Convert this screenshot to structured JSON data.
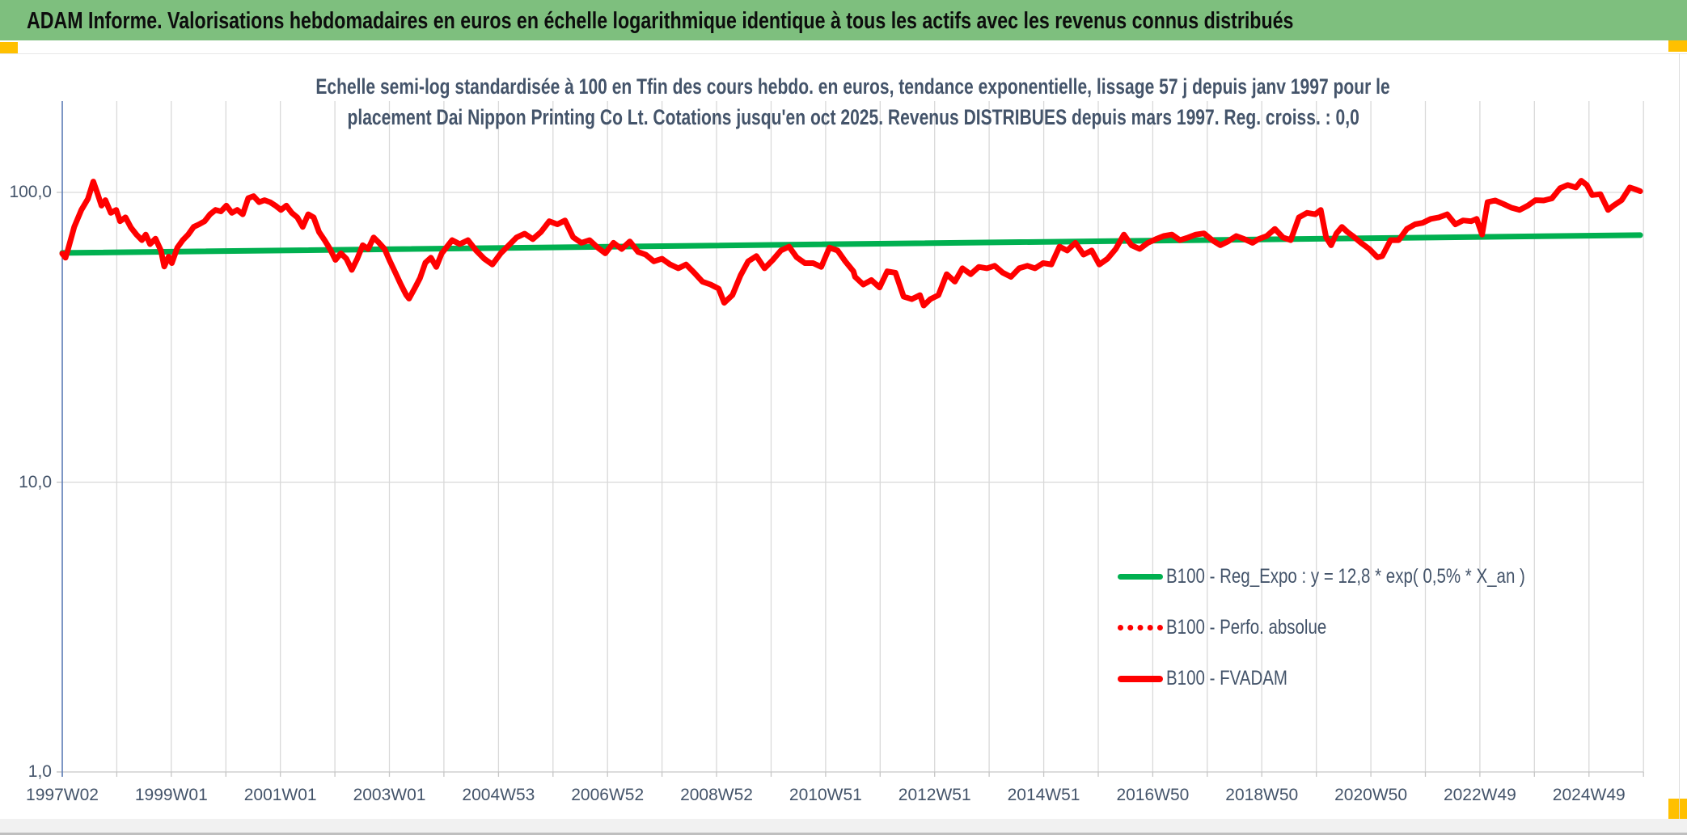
{
  "header": {
    "title": "ADAM Informe. Valorisations hebdomadaires en euros en échelle logarithmique identique à tous les actifs avec les revenus connus distribués",
    "bg_color": "#7EBF7E",
    "accent_color": "#FFC000"
  },
  "chart_data": {
    "type": "line",
    "title_lines": [
      "Echelle semi-log standardisée à 100 en Tfin des cours hebdo. en euros, tendance exponentielle, lissage 57 j depuis janv 1997 pour le",
      "placement Dai Nippon Printing Co Lt. Cotations jusqu'en oct 2025. Revenus DISTRIBUES depuis mars 1997. Reg. croiss. : 0,0"
    ],
    "text_color": "#44546A",
    "gridline_color": "#D9D9D9",
    "axis_line_color": "#5B7BB5",
    "x_axis": {
      "tick_labels": [
        "1997W02",
        "1999W01",
        "2001W01",
        "2003W01",
        "2004W53",
        "2006W52",
        "2008W52",
        "2010W51",
        "2012W51",
        "2014W51",
        "2016W50",
        "2018W50",
        "2020W50",
        "2022W49",
        "2024W49"
      ],
      "years_per_tick": 2,
      "unit": "ISO week",
      "grid": "yearly",
      "range_years": [
        0,
        29
      ]
    },
    "y_axis": {
      "scale": "log10",
      "tick_labels": [
        "100,0",
        "10,0",
        "1,0"
      ],
      "tick_values": [
        100,
        10,
        1
      ],
      "range": [
        1,
        207
      ],
      "gridlines_at": [
        100,
        10
      ]
    },
    "legend_position": "inside-bottom-right",
    "series": [
      {
        "name": "B100 - Reg_Expo : y = 12,8 * exp( 0,5% * X_an )",
        "color": "#00B050",
        "style": "solid",
        "x_unit": "years_since_1997W02",
        "points": [
          [
            0,
            61.8
          ],
          [
            28.94,
            71.2
          ]
        ]
      },
      {
        "name": "B100 - Perfo. absolue",
        "color": "#FF0000",
        "style": "dotted",
        "points_note": "coincides with B100 - FVADAM line (not separately visible on plot)"
      },
      {
        "name": "B100 - FVADAM",
        "color": "#FF0000",
        "style": "solid",
        "x_unit": "years_since_1997W02",
        "points": [
          [
            0,
            61.5
          ],
          [
            0.06,
            59.5
          ],
          [
            0.1,
            63
          ],
          [
            0.22,
            76
          ],
          [
            0.35,
            87
          ],
          [
            0.47,
            95
          ],
          [
            0.57,
            109
          ],
          [
            0.64,
            100
          ],
          [
            0.72,
            90
          ],
          [
            0.79,
            94
          ],
          [
            0.89,
            85
          ],
          [
            0.99,
            87
          ],
          [
            1.06,
            79.5
          ],
          [
            1.16,
            82
          ],
          [
            1.26,
            75.6
          ],
          [
            1.36,
            71.5
          ],
          [
            1.46,
            68.4
          ],
          [
            1.53,
            71.5
          ],
          [
            1.61,
            66.3
          ],
          [
            1.71,
            69.2
          ],
          [
            1.81,
            63
          ],
          [
            1.87,
            55.5
          ],
          [
            1.95,
            60
          ],
          [
            2.01,
            57
          ],
          [
            2.11,
            64.5
          ],
          [
            2.21,
            68.4
          ],
          [
            2.31,
            71.5
          ],
          [
            2.41,
            76
          ],
          [
            2.51,
            77.6
          ],
          [
            2.61,
            79.5
          ],
          [
            2.71,
            84
          ],
          [
            2.81,
            87
          ],
          [
            2.91,
            86
          ],
          [
            3.01,
            90
          ],
          [
            3.11,
            85
          ],
          [
            3.21,
            87
          ],
          [
            3.31,
            84
          ],
          [
            3.41,
            95.5
          ],
          [
            3.51,
            97
          ],
          [
            3.61,
            92.5
          ],
          [
            3.71,
            94
          ],
          [
            3.81,
            92.5
          ],
          [
            3.91,
            90
          ],
          [
            4.01,
            87
          ],
          [
            4.11,
            90
          ],
          [
            4.21,
            85
          ],
          [
            4.31,
            82
          ],
          [
            4.41,
            76
          ],
          [
            4.51,
            84
          ],
          [
            4.61,
            82
          ],
          [
            4.71,
            73
          ],
          [
            4.81,
            68.4
          ],
          [
            4.91,
            63.8
          ],
          [
            5.01,
            58.5
          ],
          [
            5.11,
            61.6
          ],
          [
            5.21,
            59
          ],
          [
            5.31,
            54
          ],
          [
            5.41,
            59
          ],
          [
            5.51,
            65.7
          ],
          [
            5.61,
            63.8
          ],
          [
            5.71,
            69.9
          ],
          [
            5.81,
            67
          ],
          [
            5.91,
            63.8
          ],
          [
            6.01,
            57.8
          ],
          [
            6.11,
            52.8
          ],
          [
            6.21,
            48.1
          ],
          [
            6.31,
            44.2
          ],
          [
            6.36,
            43
          ],
          [
            6.46,
            46.5
          ],
          [
            6.56,
            50.6
          ],
          [
            6.66,
            57.2
          ],
          [
            6.76,
            59.5
          ],
          [
            6.86,
            55.3
          ],
          [
            6.96,
            61.6
          ],
          [
            7.15,
            68.4
          ],
          [
            7.29,
            66.3
          ],
          [
            7.44,
            68.4
          ],
          [
            7.59,
            63
          ],
          [
            7.74,
            59
          ],
          [
            7.89,
            56.4
          ],
          [
            8.04,
            61.6
          ],
          [
            8.19,
            65.7
          ],
          [
            8.33,
            69.9
          ],
          [
            8.48,
            72
          ],
          [
            8.63,
            69
          ],
          [
            8.78,
            73
          ],
          [
            8.93,
            79.5
          ],
          [
            9.08,
            77.6
          ],
          [
            9.22,
            80
          ],
          [
            9.37,
            70
          ],
          [
            9.52,
            67
          ],
          [
            9.67,
            68.4
          ],
          [
            9.82,
            64.5
          ],
          [
            9.96,
            61.6
          ],
          [
            10.11,
            67
          ],
          [
            10.26,
            63.8
          ],
          [
            10.41,
            67.7
          ],
          [
            10.56,
            62.3
          ],
          [
            10.7,
            61
          ],
          [
            10.85,
            57.8
          ],
          [
            11,
            59
          ],
          [
            11.15,
            56.4
          ],
          [
            11.3,
            54.7
          ],
          [
            11.44,
            56.4
          ],
          [
            11.59,
            52.8
          ],
          [
            11.74,
            49.2
          ],
          [
            11.89,
            48.1
          ],
          [
            12.04,
            46.5
          ],
          [
            12.14,
            41.6
          ],
          [
            12.29,
            44.2
          ],
          [
            12.44,
            51.7
          ],
          [
            12.58,
            57.8
          ],
          [
            12.73,
            60.3
          ],
          [
            12.88,
            54.7
          ],
          [
            13.03,
            58.4
          ],
          [
            13.18,
            63
          ],
          [
            13.33,
            65
          ],
          [
            13.47,
            59.7
          ],
          [
            13.62,
            57
          ],
          [
            13.77,
            57
          ],
          [
            13.92,
            55.3
          ],
          [
            14.07,
            64.5
          ],
          [
            14.22,
            63
          ],
          [
            14.36,
            57.8
          ],
          [
            14.51,
            53.4
          ],
          [
            14.54,
            51.1
          ],
          [
            14.69,
            48.1
          ],
          [
            14.84,
            49.8
          ],
          [
            14.99,
            47
          ],
          [
            15.13,
            53.4
          ],
          [
            15.28,
            52.8
          ],
          [
            15.43,
            43.7
          ],
          [
            15.58,
            42.8
          ],
          [
            15.73,
            44.2
          ],
          [
            15.8,
            40.7
          ],
          [
            15.92,
            42.8
          ],
          [
            16.07,
            44.2
          ],
          [
            16.22,
            52.2
          ],
          [
            16.37,
            49.2
          ],
          [
            16.51,
            54.7
          ],
          [
            16.66,
            52.2
          ],
          [
            16.81,
            55.3
          ],
          [
            16.96,
            54.7
          ],
          [
            17.1,
            55.8
          ],
          [
            17.25,
            52.8
          ],
          [
            17.4,
            51.1
          ],
          [
            17.55,
            54.7
          ],
          [
            17.7,
            55.8
          ],
          [
            17.84,
            54.7
          ],
          [
            17.99,
            57
          ],
          [
            18.14,
            56.4
          ],
          [
            18.29,
            65
          ],
          [
            18.43,
            63
          ],
          [
            18.58,
            67
          ],
          [
            18.73,
            61
          ],
          [
            18.88,
            63
          ],
          [
            19.02,
            56.4
          ],
          [
            19.17,
            59
          ],
          [
            19.32,
            63.8
          ],
          [
            19.47,
            71.5
          ],
          [
            19.61,
            65.7
          ],
          [
            19.76,
            63.8
          ],
          [
            19.91,
            67
          ],
          [
            20.06,
            69
          ],
          [
            20.2,
            70.7
          ],
          [
            20.35,
            71.5
          ],
          [
            20.5,
            68.4
          ],
          [
            20.65,
            69.9
          ],
          [
            20.79,
            71.5
          ],
          [
            20.94,
            72.2
          ],
          [
            21.09,
            68.4
          ],
          [
            21.24,
            65.7
          ],
          [
            21.38,
            67.7
          ],
          [
            21.53,
            70.7
          ],
          [
            21.68,
            69
          ],
          [
            21.83,
            67
          ],
          [
            21.94,
            69
          ],
          [
            22.09,
            70.7
          ],
          [
            22.24,
            74.8
          ],
          [
            22.39,
            69.9
          ],
          [
            22.53,
            68.4
          ],
          [
            22.68,
            82
          ],
          [
            22.83,
            85
          ],
          [
            22.98,
            84
          ],
          [
            23.08,
            87
          ],
          [
            23.18,
            69.9
          ],
          [
            23.27,
            65.7
          ],
          [
            23.37,
            72.2
          ],
          [
            23.47,
            76
          ],
          [
            23.57,
            73
          ],
          [
            23.67,
            70.7
          ],
          [
            23.82,
            67
          ],
          [
            23.97,
            63.8
          ],
          [
            24.12,
            59.7
          ],
          [
            24.21,
            60.3
          ],
          [
            24.36,
            68.4
          ],
          [
            24.51,
            68.4
          ],
          [
            24.66,
            74.8
          ],
          [
            24.81,
            77.6
          ],
          [
            24.95,
            78.5
          ],
          [
            25.1,
            81
          ],
          [
            25.25,
            82
          ],
          [
            25.4,
            84
          ],
          [
            25.55,
            77.6
          ],
          [
            25.69,
            80
          ],
          [
            25.84,
            79.5
          ],
          [
            25.94,
            81
          ],
          [
            26.04,
            71.5
          ],
          [
            26.14,
            92.5
          ],
          [
            26.28,
            93.8
          ],
          [
            26.43,
            91.2
          ],
          [
            26.58,
            88.5
          ],
          [
            26.73,
            87
          ],
          [
            26.88,
            90
          ],
          [
            27.02,
            94
          ],
          [
            27.17,
            93.8
          ],
          [
            27.32,
            95.3
          ],
          [
            27.47,
            103.3
          ],
          [
            27.61,
            106
          ],
          [
            27.76,
            104
          ],
          [
            27.86,
            109.7
          ],
          [
            27.96,
            106
          ],
          [
            28.06,
            97.9
          ],
          [
            28.21,
            98.6
          ],
          [
            28.35,
            87
          ],
          [
            28.45,
            90
          ],
          [
            28.6,
            94
          ],
          [
            28.75,
            104
          ],
          [
            28.85,
            102.5
          ],
          [
            28.94,
            101
          ]
        ]
      }
    ]
  }
}
